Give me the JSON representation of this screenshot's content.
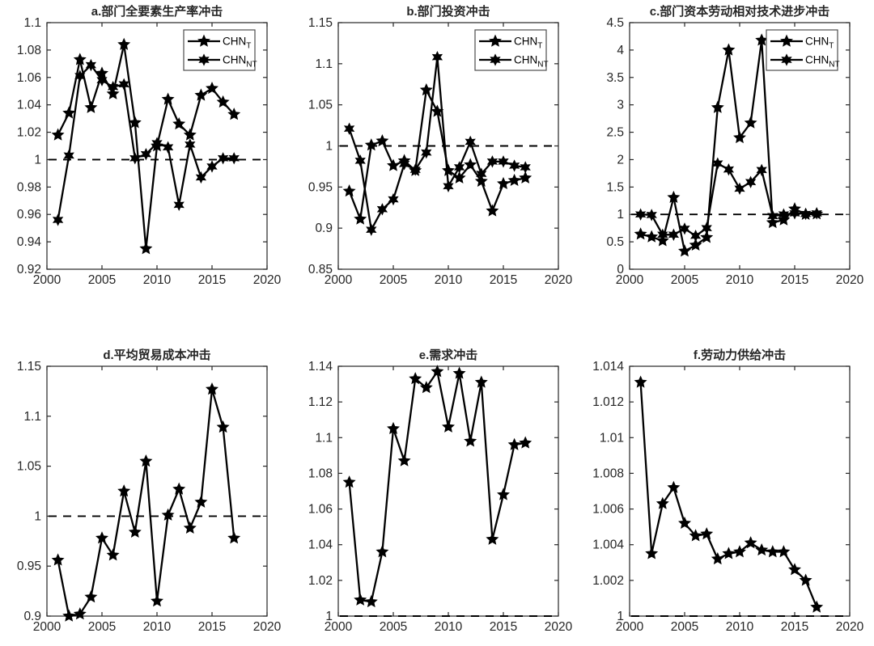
{
  "figure": {
    "background": "#ffffff",
    "line_color": "#000000",
    "tick_label_color": "#262626",
    "title_color": "#262626"
  },
  "chart_data": [
    {
      "id": "a",
      "type": "line",
      "title": "a.部门全要素生产率冲击",
      "x": [
        2001,
        2002,
        2003,
        2004,
        2005,
        2006,
        2007,
        2008,
        2009,
        2010,
        2011,
        2012,
        2013,
        2014,
        2015,
        2016,
        2017
      ],
      "xlim": [
        2000,
        2020
      ],
      "xticks": [
        "2000",
        "2005",
        "2010",
        "2015",
        "2020"
      ],
      "ylim": [
        0.92,
        1.1
      ],
      "yticks": [
        "0.92",
        "0.94",
        "0.96",
        "0.98",
        "1",
        "1.02",
        "1.04",
        "1.06",
        "1.08",
        "1.1"
      ],
      "reference_line_y": 1,
      "grid": false,
      "legend": {
        "position": "top-right",
        "entries": [
          {
            "base": "CHN",
            "sub": "T"
          },
          {
            "base": "CHN",
            "sub": "NT"
          }
        ]
      },
      "series": [
        {
          "name": "CHN_T",
          "marker": "pentagram",
          "values": [
            1.018,
            1.034,
            1.073,
            1.038,
            1.063,
            1.048,
            1.084,
            1.027,
            0.935,
            1.01,
            1.044,
            1.026,
            1.018,
            1.047,
            1.052,
            1.042,
            1.033
          ]
        },
        {
          "name": "CHN_NT",
          "marker": "hexagram",
          "values": [
            0.956,
            1.003,
            1.061,
            1.069,
            1.058,
            1.053,
            1.055,
            1.001,
            1.004,
            1.012,
            1.009,
            0.967,
            1.011,
            0.987,
            0.995,
            1.001,
            1.001
          ]
        }
      ]
    },
    {
      "id": "b",
      "type": "line",
      "title": "b.部门投资冲击",
      "x": [
        2001,
        2002,
        2003,
        2004,
        2005,
        2006,
        2007,
        2008,
        2009,
        2010,
        2011,
        2012,
        2013,
        2014,
        2015,
        2016,
        2017
      ],
      "xlim": [
        2000,
        2020
      ],
      "xticks": [
        "2000",
        "2005",
        "2010",
        "2015",
        "2020"
      ],
      "ylim": [
        0.85,
        1.15
      ],
      "yticks": [
        "0.85",
        "0.9",
        "0.95",
        "1",
        "1.05",
        "1.1",
        "1.15"
      ],
      "reference_line_y": 1,
      "grid": false,
      "legend": {
        "position": "top-right",
        "entries": [
          {
            "base": "CHN",
            "sub": "T"
          },
          {
            "base": "CHN",
            "sub": "NT"
          }
        ]
      },
      "series": [
        {
          "name": "CHN_T",
          "marker": "pentagram",
          "values": [
            0.945,
            0.911,
            1.001,
            1.006,
            0.976,
            0.982,
            0.97,
            1.068,
            1.042,
            0.97,
            0.961,
            0.977,
            0.957,
            0.921,
            0.954,
            0.958,
            0.961
          ]
        },
        {
          "name": "CHN_NT",
          "marker": "hexagram",
          "values": [
            1.021,
            0.982,
            0.898,
            0.923,
            0.935,
            0.978,
            0.971,
            0.992,
            1.108,
            0.951,
            0.974,
            1.005,
            0.966,
            0.981,
            0.981,
            0.976,
            0.974
          ]
        }
      ]
    },
    {
      "id": "c",
      "type": "line",
      "title": "c.部门资本劳动相对技术进步冲击",
      "x": [
        2001,
        2002,
        2003,
        2004,
        2005,
        2006,
        2007,
        2008,
        2009,
        2010,
        2011,
        2012,
        2013,
        2014,
        2015,
        2016,
        2017
      ],
      "xlim": [
        2000,
        2020
      ],
      "xticks": [
        "2000",
        "2005",
        "2010",
        "2015",
        "2020"
      ],
      "ylim": [
        0,
        4.5
      ],
      "yticks": [
        "0",
        "0.5",
        "1",
        "1.5",
        "2",
        "2.5",
        "3",
        "3.5",
        "4",
        "4.5"
      ],
      "reference_line_y": 1,
      "grid": false,
      "legend": {
        "position": "top-right",
        "entries": [
          {
            "base": "CHN",
            "sub": "T"
          },
          {
            "base": "CHN",
            "sub": "NT"
          }
        ]
      },
      "series": [
        {
          "name": "CHN_T",
          "marker": "pentagram",
          "values": [
            0.64,
            0.59,
            0.52,
            1.31,
            0.33,
            0.44,
            0.58,
            2.95,
            4.0,
            2.4,
            2.67,
            4.18,
            0.85,
            0.9,
            1.1,
            1.0,
            1.01
          ]
        },
        {
          "name": "CHN_NT",
          "marker": "hexagram",
          "values": [
            1.0,
            0.99,
            0.63,
            0.63,
            0.74,
            0.61,
            0.75,
            1.93,
            1.82,
            1.47,
            1.59,
            1.81,
            0.97,
            1.0,
            1.02,
            1.01,
            1.02
          ]
        }
      ]
    },
    {
      "id": "d",
      "type": "line",
      "title": "d.平均贸易成本冲击",
      "x": [
        2001,
        2002,
        2003,
        2004,
        2005,
        2006,
        2007,
        2008,
        2009,
        2010,
        2011,
        2012,
        2013,
        2014,
        2015,
        2016,
        2017
      ],
      "xlim": [
        2000,
        2020
      ],
      "xticks": [
        "2000",
        "2005",
        "2010",
        "2015",
        "2020"
      ],
      "ylim": [
        0.9,
        1.15
      ],
      "yticks": [
        "0.9",
        "0.95",
        "1",
        "1.05",
        "1.1",
        "1.15"
      ],
      "reference_line_y": 1,
      "grid": false,
      "legend": null,
      "series": [
        {
          "name": "CHN",
          "marker": "pentagram",
          "values": [
            0.956,
            0.9,
            0.902,
            0.919,
            0.978,
            0.961,
            1.025,
            0.984,
            1.055,
            0.915,
            1.001,
            1.027,
            0.988,
            1.014,
            1.127,
            1.089,
            0.978
          ]
        }
      ]
    },
    {
      "id": "e",
      "type": "line",
      "title": "e.需求冲击",
      "x": [
        2001,
        2002,
        2003,
        2004,
        2005,
        2006,
        2007,
        2008,
        2009,
        2010,
        2011,
        2012,
        2013,
        2014,
        2015,
        2016,
        2017
      ],
      "xlim": [
        2000,
        2020
      ],
      "xticks": [
        "2000",
        "2005",
        "2010",
        "2015",
        "2020"
      ],
      "ylim": [
        1.0,
        1.14
      ],
      "yticks": [
        "1",
        "1.02",
        "1.04",
        "1.06",
        "1.08",
        "1.1",
        "1.12",
        "1.14"
      ],
      "reference_line_y": 1,
      "grid": false,
      "legend": null,
      "series": [
        {
          "name": "CHN",
          "marker": "pentagram",
          "values": [
            1.075,
            1.009,
            1.008,
            1.036,
            1.105,
            1.087,
            1.133,
            1.128,
            1.137,
            1.106,
            1.136,
            1.098,
            1.131,
            1.043,
            1.068,
            1.096,
            1.097
          ]
        }
      ]
    },
    {
      "id": "f",
      "type": "line",
      "title": "f.劳动力供给冲击",
      "x": [
        2001,
        2002,
        2003,
        2004,
        2005,
        2006,
        2007,
        2008,
        2009,
        2010,
        2011,
        2012,
        2013,
        2014,
        2015,
        2016,
        2017
      ],
      "xlim": [
        2000,
        2020
      ],
      "xticks": [
        "2000",
        "2005",
        "2010",
        "2015",
        "2020"
      ],
      "ylim": [
        1.0,
        1.014
      ],
      "yticks": [
        "1",
        "1.002",
        "1.004",
        "1.006",
        "1.008",
        "1.01",
        "1.012",
        "1.014"
      ],
      "reference_line_y": 1,
      "grid": false,
      "legend": null,
      "series": [
        {
          "name": "CHN",
          "marker": "pentagram",
          "values": [
            1.0131,
            1.0035,
            1.0063,
            1.0072,
            1.0052,
            1.0045,
            1.0046,
            1.0032,
            1.0035,
            1.0036,
            1.0041,
            1.0037,
            1.0036,
            1.0036,
            1.0026,
            1.002,
            1.0005
          ]
        }
      ]
    }
  ]
}
